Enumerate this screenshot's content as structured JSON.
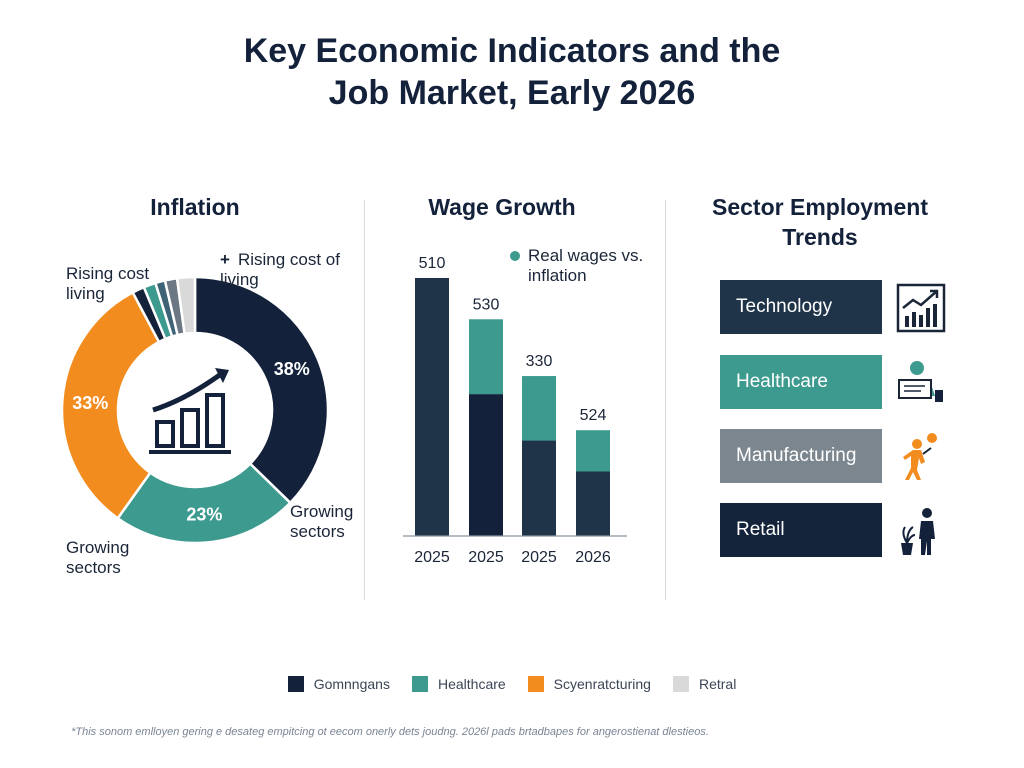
{
  "title_line1": "Key Economic Indicators and the",
  "title_line2": "Job Market, Early 2026",
  "inflation": {
    "panel_title": "Inflation",
    "label_top_left": "Rising cost living",
    "label_top_right_marker": "+",
    "label_top_right": "Rising cost of living",
    "label_bottom_right": "Growing sectors",
    "label_bottom_left": "Growing sectors"
  },
  "wage": {
    "panel_title": "Wage Growth",
    "legend_label": "Real wages vs. inflation"
  },
  "sector": {
    "panel_title": "Sector Employment Trends",
    "items": [
      {
        "label": "Technology",
        "color": "#1f3449",
        "icon": "chart-growth-icon"
      },
      {
        "label": "Healthcare",
        "color": "#3d9a8f",
        "icon": "doctor-icon"
      },
      {
        "label": "Manufacturing",
        "color": "#7b868f",
        "icon": "worker-icon"
      },
      {
        "label": "Retail",
        "color": "#13233a",
        "icon": "shopper-icon"
      }
    ]
  },
  "legend": [
    {
      "label": "Gomnngans",
      "color": "#13213a"
    },
    {
      "label": "Healthcare",
      "color": "#3d9a8f"
    },
    {
      "label": "Scyenratcturing",
      "color": "#f28c1e"
    },
    {
      "label": "Retral",
      "color": "#d9d9d9"
    }
  ],
  "footnote": "*This sonom emlloyen gering e desateg empitcing ot eecom onerly dets joudng. 2026l pads brtadbapes for angerostienat dlestieos.",
  "chart_data": [
    {
      "type": "pie",
      "title": "Inflation",
      "center_icon": "bar-chart-growth-icon",
      "slices": [
        {
          "value": 38,
          "label": "38%",
          "color": "#13213a"
        },
        {
          "value": 23,
          "label": "23%",
          "color": "#3d9a8f"
        },
        {
          "value": 33,
          "label": "33%",
          "color": "#f28c1e"
        },
        {
          "value": 1.5,
          "label": "",
          "color": "#13213a"
        },
        {
          "value": 1.5,
          "label": "",
          "color": "#3d9a8f"
        },
        {
          "value": 1.2,
          "label": "",
          "color": "#3f6376"
        },
        {
          "value": 1.5,
          "label": "",
          "color": "#6b7883"
        },
        {
          "value": 2.2,
          "label": "",
          "color": "#d9d9d9"
        }
      ]
    },
    {
      "type": "bar",
      "title": "Wage Growth",
      "categories": [
        "2025",
        "2025",
        "2025",
        "2026"
      ],
      "value_labels": [
        "510",
        "530",
        "330",
        "524"
      ],
      "stacks": [
        [
          {
            "value": 100,
            "color": "#1f3449"
          }
        ],
        [
          {
            "value": 55,
            "color": "#13213a"
          },
          {
            "value": 29,
            "color": "#3d9a8f"
          }
        ],
        [
          {
            "value": 37,
            "color": "#1f3449"
          },
          {
            "value": 25,
            "color": "#3d9a8f"
          }
        ],
        [
          {
            "value": 25,
            "color": "#1f3449"
          },
          {
            "value": 16,
            "color": "#3d9a8f"
          }
        ]
      ],
      "ylim": [
        0,
        100
      ],
      "legend": "Real wages vs. inflation",
      "legend_color": "#3d9a8f"
    }
  ]
}
